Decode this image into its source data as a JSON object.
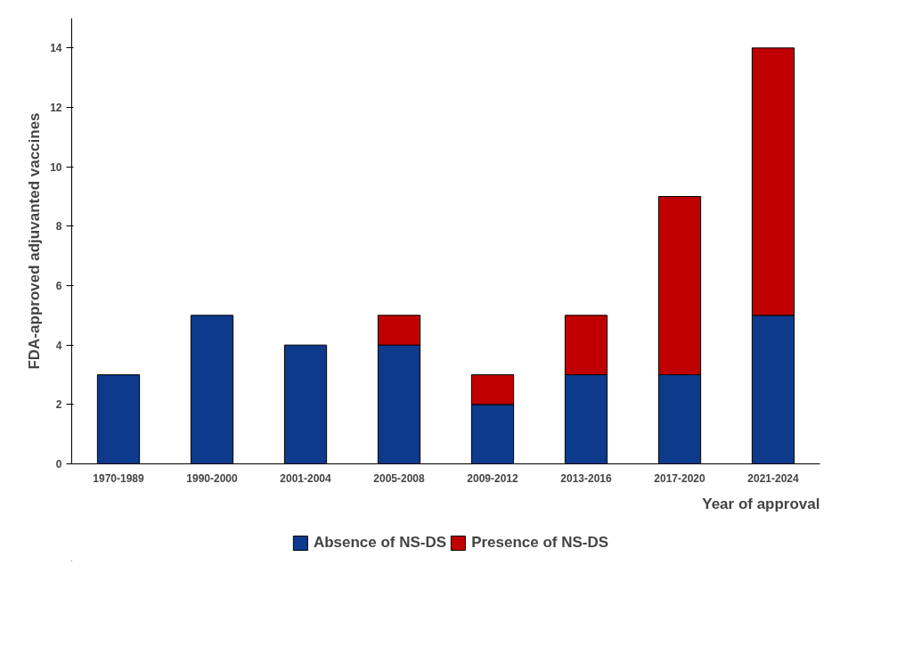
{
  "chart_data": {
    "type": "bar",
    "stacked": true,
    "xlabel": "Year of approval",
    "ylabel": "FDA-approved adjuvanted vaccines",
    "categories": [
      "1970-1989",
      "1990-2000",
      "2001-2004",
      "2005-2008",
      "2009-2012",
      "2013-2016",
      "2017-2020",
      "2021-2024"
    ],
    "series": [
      {
        "name": "Absence of NS-DS",
        "color": "#0d3a8a",
        "values": [
          3,
          5,
          4,
          4,
          2,
          3,
          3,
          5
        ]
      },
      {
        "name": "Presence of NS-DS",
        "color": "#c00000",
        "values": [
          null,
          null,
          null,
          1,
          1,
          2,
          6,
          9
        ]
      }
    ],
    "ylim": [
      0,
      15
    ],
    "yticks": [
      0,
      2,
      4,
      6,
      8,
      10,
      12,
      14
    ],
    "grid": false,
    "legend": "bottom"
  }
}
